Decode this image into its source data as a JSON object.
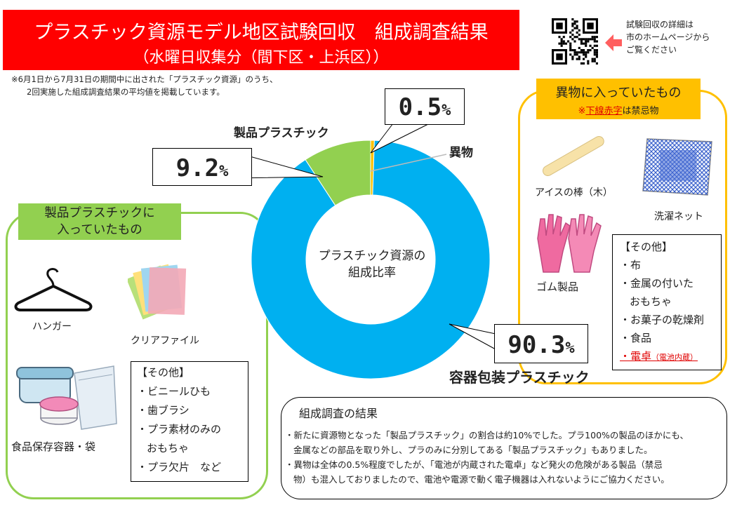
{
  "header": {
    "title": "プラスチック資源モデル地区試験回収　組成調査結果",
    "subtitle": "（水曜日収集分（間下区・上浜区））"
  },
  "note": [
    "※6月1日から7月31日の期間中に出された「プラスチック資源」のうち、",
    "2回実施した組成調査結果の平均値を掲載しています。"
  ],
  "qr": {
    "text": [
      "試験回収の詳細は",
      "市のホームページから",
      "ご覧ください"
    ],
    "icon": "qr-code-icon",
    "arrow_color": "#ff5f5f"
  },
  "chart_data": {
    "type": "pie",
    "style": "donut",
    "center_label": [
      "プラスチック資源の",
      "組成比率"
    ],
    "slices": [
      {
        "label": "異物",
        "value": 0.5,
        "display": "0.5",
        "color": "#ffc000"
      },
      {
        "label": "容器包装プラスチック",
        "value": 90.3,
        "display": "90.3",
        "color": "#00b0f0"
      },
      {
        "label": "製品プラスチック",
        "value": 9.2,
        "display": "9.2",
        "color": "#92d050"
      }
    ],
    "unit": "%"
  },
  "left_panel": {
    "title": [
      "製品プラスチックに",
      "入っていたもの"
    ],
    "border_color": "#92d050",
    "items": [
      "ハンガー",
      "クリアファイル",
      "食品保存容器・袋"
    ],
    "other_title": "【その他】",
    "other": [
      "・ビニールひも",
      "・歯ブラシ",
      "・プラ素材のみの",
      "おもちゃ",
      "・プラ欠片　など"
    ]
  },
  "right_panel": {
    "title": "異物に入っていたもの",
    "note_prefix": "※",
    "note_red": "下線赤字",
    "note_suffix": "は禁忌物",
    "border_color": "#ffc000",
    "items": [
      "アイスの棒（木）",
      "洗濯ネット",
      "ゴム製品"
    ],
    "other_title": "【その他】",
    "other": [
      "・布",
      "・金属の付いた",
      "おもちゃ",
      "・お菓子の乾燥剤",
      "・食品"
    ],
    "other_red": "・電卓",
    "other_red_small": "（電池内蔵）"
  },
  "results": {
    "title": "組成調査の結果",
    "lines": [
      "・新たに資源物となった「製品プラスチック」の割合は約10%でした。プラ100%の製品のほかにも、",
      "金属などの部品を取り外し、プラのみに分別してある「製品プラスチック」もありました。",
      "・異物は全体の0.5%程度でしたが、「電池が内蔵された電卓」など発火の危険がある製品（禁忌",
      "物）も混入しておりましたので、電池や電源で動く電子機器は入れないようにご協力ください。"
    ]
  }
}
